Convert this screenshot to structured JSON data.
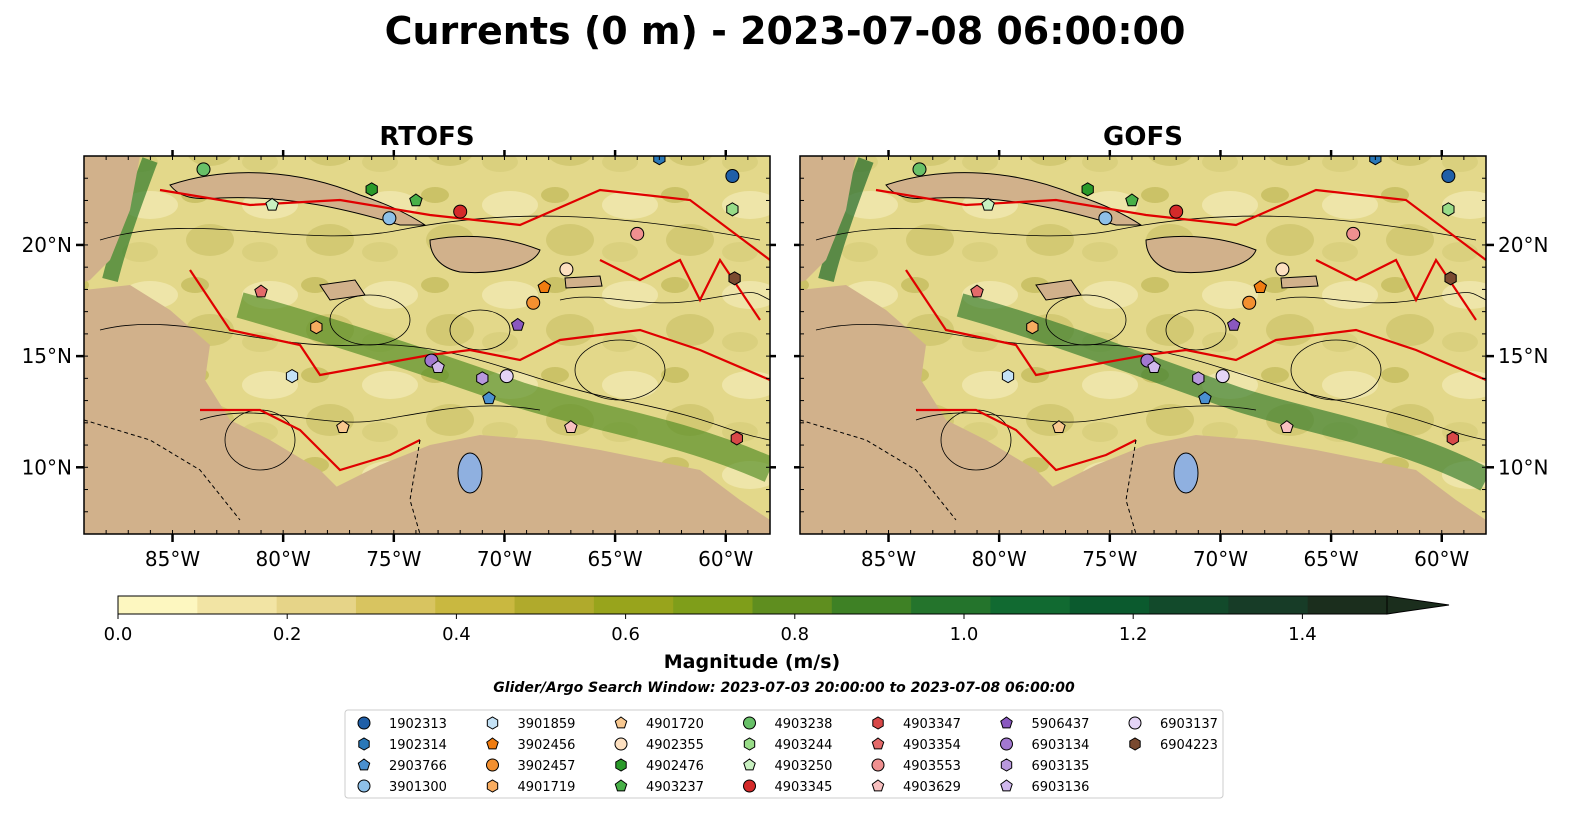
{
  "chart_data": {
    "type": "heatmap",
    "title": "Currents (0 m) - 2023-07-08 06:00:00",
    "panels": [
      {
        "title": "RTOFS",
        "y_axis_side": "left"
      },
      {
        "title": "GOFS",
        "y_axis_side": "right"
      }
    ],
    "xlim": [
      -89,
      -58
    ],
    "ylim": [
      7,
      24
    ],
    "x_ticks": [
      -85,
      -80,
      -75,
      -70,
      -65,
      -60
    ],
    "x_tick_labels": [
      "85°W",
      "80°W",
      "75°W",
      "70°W",
      "65°W",
      "60°W"
    ],
    "y_ticks": [
      10,
      15,
      20
    ],
    "y_tick_labels": [
      "10°N",
      "15°N",
      "20°N"
    ],
    "colorbar": {
      "label": "Magnitude (m/s)",
      "min": 0.0,
      "max": 1.5,
      "step": 0.1,
      "extend": "max",
      "ticks": [
        0.0,
        0.2,
        0.4,
        0.6,
        0.8,
        1.0,
        1.2,
        1.4
      ],
      "tick_labels": [
        "0.0",
        "0.2",
        "0.4",
        "0.6",
        "0.8",
        "1.0",
        "1.2",
        "1.4"
      ],
      "colors": [
        "#fdf7c0",
        "#f2e4a4",
        "#e6d488",
        "#d8c460",
        "#c9b840",
        "#b0aa2c",
        "#98a41c",
        "#7f9e1a",
        "#5f8e1f",
        "#3e8125",
        "#24742c",
        "#116a31",
        "#0b5a2e",
        "#124a2b",
        "#173c27",
        "#1b2e1d"
      ]
    },
    "search_window": "Glider/Argo Search Window: 2023-07-03 20:00:00 to 2023-07-08 06:00:00",
    "legend_placement": "bottom-center",
    "legend": [
      {
        "name": "1902313",
        "marker": "circle",
        "color": "#1f5fa8"
      },
      {
        "name": "1902314",
        "marker": "hexagon",
        "color": "#2a78b8"
      },
      {
        "name": "2903766",
        "marker": "pentagon",
        "color": "#4a90d0"
      },
      {
        "name": "3901300",
        "marker": "circle",
        "color": "#8ec0e8"
      },
      {
        "name": "3901859",
        "marker": "hexagon",
        "color": "#c4e2f6"
      },
      {
        "name": "3902456",
        "marker": "pentagon",
        "color": "#f07c10"
      },
      {
        "name": "3902457",
        "marker": "circle",
        "color": "#f39030"
      },
      {
        "name": "4901719",
        "marker": "hexagon",
        "color": "#f8ac60"
      },
      {
        "name": "4901720",
        "marker": "pentagon",
        "color": "#f8c890"
      },
      {
        "name": "4902355",
        "marker": "circle",
        "color": "#fde0c0"
      },
      {
        "name": "4902476",
        "marker": "hexagon",
        "color": "#2a9a2a"
      },
      {
        "name": "4903237",
        "marker": "pentagon",
        "color": "#48b048"
      },
      {
        "name": "4903238",
        "marker": "circle",
        "color": "#68c068"
      },
      {
        "name": "4903244",
        "marker": "hexagon",
        "color": "#98dc88"
      },
      {
        "name": "4903250",
        "marker": "pentagon",
        "color": "#c8f0c0"
      },
      {
        "name": "4903345",
        "marker": "circle",
        "color": "#d42a2a"
      },
      {
        "name": "4903347",
        "marker": "hexagon",
        "color": "#d84848"
      },
      {
        "name": "4903354",
        "marker": "pentagon",
        "color": "#e46a6a"
      },
      {
        "name": "4903553",
        "marker": "circle",
        "color": "#f09090"
      },
      {
        "name": "4903629",
        "marker": "pentagon",
        "color": "#f8c0c0"
      },
      {
        "name": "5906437",
        "marker": "pentagon",
        "color": "#8a58c0"
      },
      {
        "name": "6903134",
        "marker": "circle",
        "color": "#a278d0"
      },
      {
        "name": "6903135",
        "marker": "hexagon",
        "color": "#b898dc"
      },
      {
        "name": "6903136",
        "marker": "pentagon",
        "color": "#d0b8ec"
      },
      {
        "name": "6903137",
        "marker": "circle",
        "color": "#e4d4f6"
      },
      {
        "name": "6904223",
        "marker": "hexagon",
        "color": "#7a4a30"
      }
    ],
    "floats": [
      {
        "id": "1902313",
        "lon": -59.7,
        "lat": 23.1
      },
      {
        "id": "1902314",
        "lon": -63.0,
        "lat": 23.9
      },
      {
        "id": "2903766",
        "lon": -70.7,
        "lat": 13.1
      },
      {
        "id": "3901300",
        "lon": -75.2,
        "lat": 21.2
      },
      {
        "id": "3901859",
        "lon": -79.6,
        "lat": 14.1
      },
      {
        "id": "3902456",
        "lon": -68.2,
        "lat": 18.1
      },
      {
        "id": "3902457",
        "lon": -68.7,
        "lat": 17.4
      },
      {
        "id": "4901719",
        "lon": -78.5,
        "lat": 16.3
      },
      {
        "id": "4901720",
        "lon": -77.3,
        "lat": 11.8
      },
      {
        "id": "4902355",
        "lon": -67.2,
        "lat": 18.9
      },
      {
        "id": "4902476",
        "lon": -76.0,
        "lat": 22.5
      },
      {
        "id": "4903237",
        "lon": -74.0,
        "lat": 22.0
      },
      {
        "id": "4903238",
        "lon": -83.6,
        "lat": 23.4
      },
      {
        "id": "4903244",
        "lon": -59.7,
        "lat": 21.6
      },
      {
        "id": "4903250",
        "lon": -80.5,
        "lat": 21.8
      },
      {
        "id": "4903345",
        "lon": -72.0,
        "lat": 21.5
      },
      {
        "id": "4903347",
        "lon": -59.5,
        "lat": 11.3
      },
      {
        "id": "4903354",
        "lon": -81.0,
        "lat": 17.9
      },
      {
        "id": "4903553",
        "lon": -64.0,
        "lat": 20.5
      },
      {
        "id": "4903629",
        "lon": -67.0,
        "lat": 11.8
      },
      {
        "id": "5906437",
        "lon": -69.4,
        "lat": 16.4
      },
      {
        "id": "6903134",
        "lon": -73.3,
        "lat": 14.8
      },
      {
        "id": "6903135",
        "lon": -71.0,
        "lat": 14.0
      },
      {
        "id": "6903136",
        "lon": -73.0,
        "lat": 14.5
      },
      {
        "id": "6903137",
        "lon": -69.9,
        "lat": 14.1
      },
      {
        "id": "6904223",
        "lon": -59.6,
        "lat": 18.5
      }
    ]
  }
}
